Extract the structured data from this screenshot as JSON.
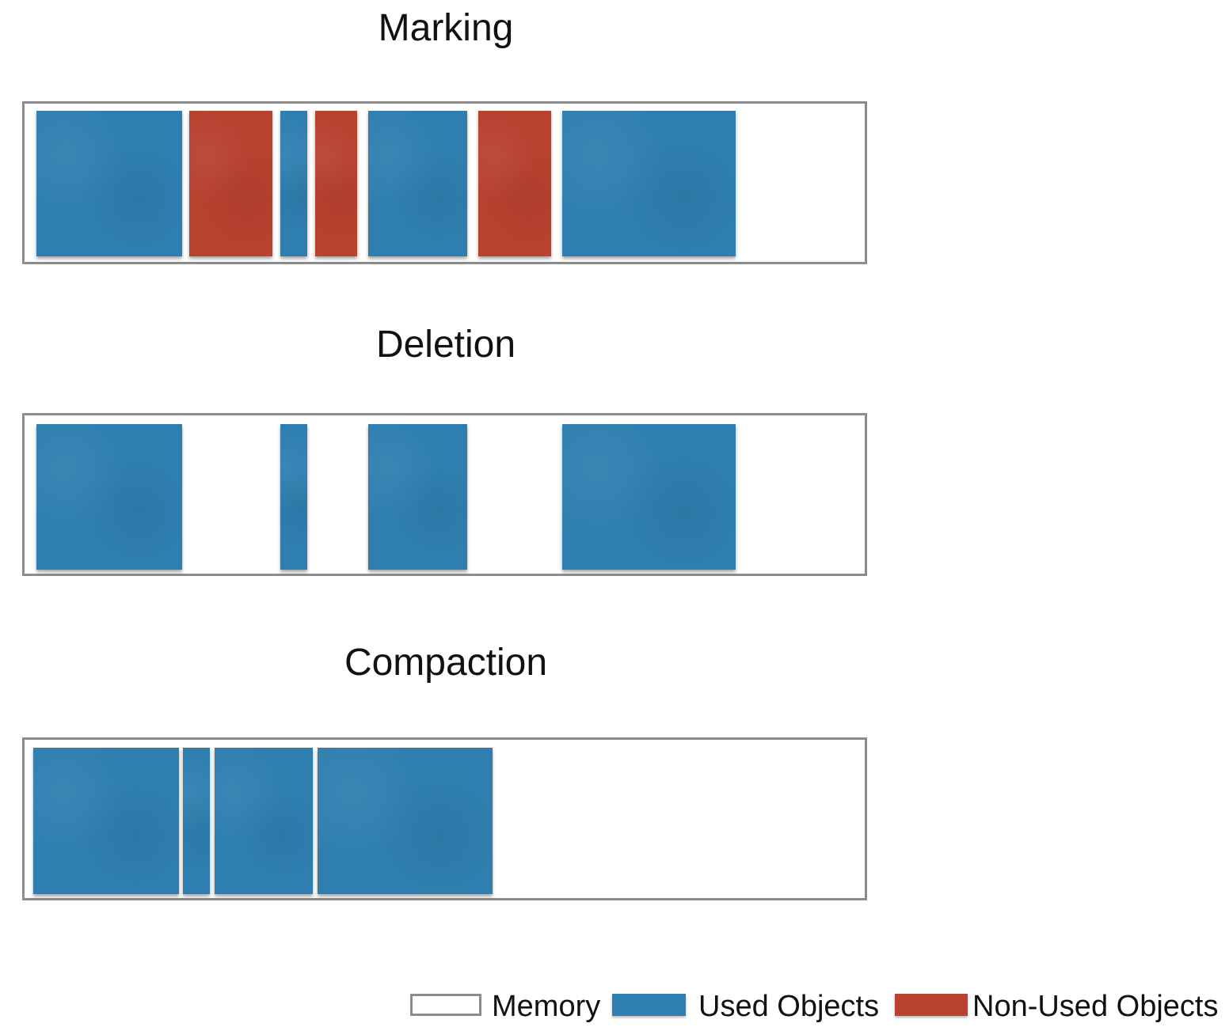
{
  "colors": {
    "used": "#2e7fb0",
    "non_used": "#b8412f",
    "memory_border": "#8c8c8e"
  },
  "stages": [
    {
      "title": "Marking",
      "blocks": [
        {
          "kind": "used"
        },
        {
          "kind": "non_used"
        },
        {
          "kind": "used"
        },
        {
          "kind": "non_used"
        },
        {
          "kind": "used"
        },
        {
          "kind": "non_used"
        },
        {
          "kind": "used"
        }
      ]
    },
    {
      "title": "Deletion",
      "blocks": [
        {
          "kind": "used"
        },
        {
          "kind": "used"
        },
        {
          "kind": "used"
        },
        {
          "kind": "used"
        }
      ]
    },
    {
      "title": "Compaction",
      "blocks": [
        {
          "kind": "used"
        },
        {
          "kind": "used"
        },
        {
          "kind": "used"
        },
        {
          "kind": "used"
        }
      ]
    }
  ],
  "legend": {
    "memory_label": "Memory",
    "used_label": "Used Objects",
    "non_used_label": "Non-Used Objects"
  }
}
